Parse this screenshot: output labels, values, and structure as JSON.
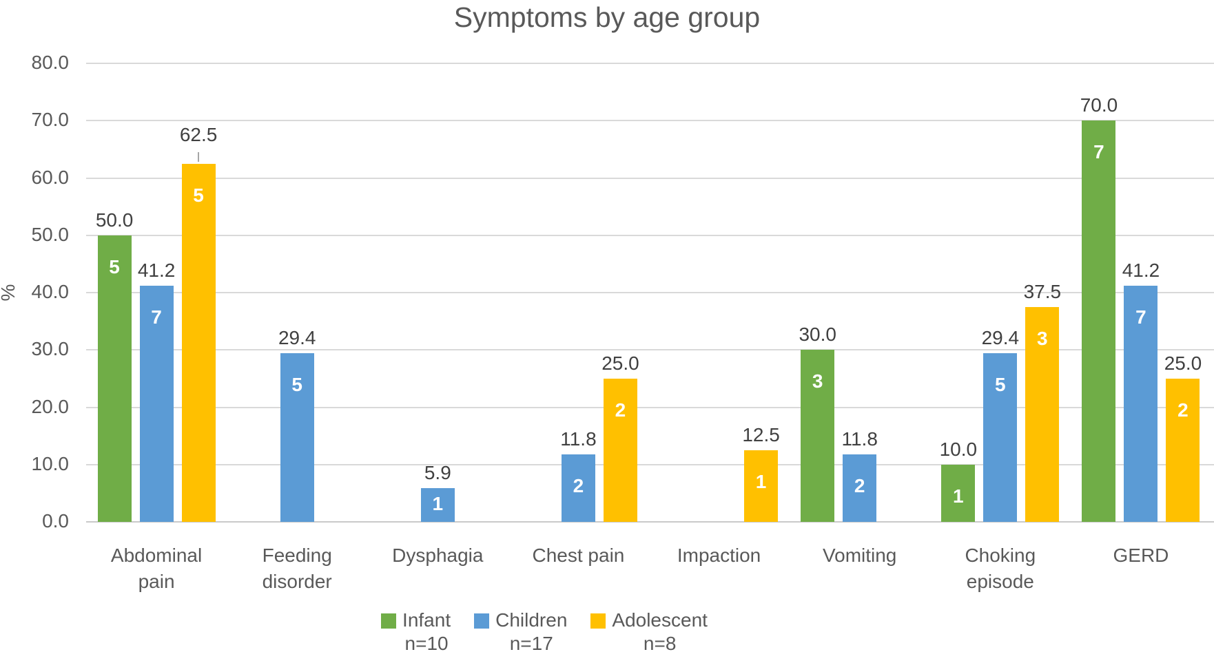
{
  "chart_data": {
    "type": "bar",
    "title": "Symptoms by age group",
    "ylabel": "%",
    "ylim": [
      0,
      80
    ],
    "ytick_step": 10,
    "ytick_labels": [
      "0.0",
      "10.0",
      "20.0",
      "30.0",
      "40.0",
      "50.0",
      "60.0",
      "70.0",
      "80.0"
    ],
    "grid": true,
    "legend_position": "bottom",
    "categories": [
      {
        "lines": [
          "Abdominal",
          "pain"
        ]
      },
      {
        "lines": [
          "Feeding",
          "disorder"
        ]
      },
      {
        "lines": [
          "Dysphagia"
        ]
      },
      {
        "lines": [
          "Chest pain"
        ]
      },
      {
        "lines": [
          "Impaction"
        ]
      },
      {
        "lines": [
          "Vomiting"
        ]
      },
      {
        "lines": [
          "Choking",
          "episode"
        ]
      },
      {
        "lines": [
          "GERD"
        ]
      }
    ],
    "series": [
      {
        "name": "Infant",
        "n_label": "n=10",
        "color": "#70AD47",
        "values": [
          50.0,
          null,
          null,
          null,
          null,
          30.0,
          10.0,
          70.0
        ],
        "counts": [
          5,
          null,
          null,
          null,
          null,
          3,
          1,
          7
        ]
      },
      {
        "name": "Children",
        "n_label": "n=17",
        "color": "#5B9BD5",
        "values": [
          41.2,
          29.4,
          5.9,
          11.8,
          null,
          11.8,
          29.4,
          41.2
        ],
        "counts": [
          7,
          5,
          1,
          2,
          null,
          2,
          5,
          7
        ]
      },
      {
        "name": "Adolescent",
        "n_label": "n=8",
        "color": "#FFC000",
        "values": [
          62.5,
          null,
          null,
          25.0,
          12.5,
          null,
          37.5,
          25.0
        ],
        "counts": [
          5,
          null,
          null,
          2,
          1,
          null,
          3,
          2
        ]
      }
    ],
    "value_label_decimals": 1,
    "leader_line_label": {
      "series_index": 2,
      "category_index": 0
    },
    "colors": {
      "text": "#595959",
      "value_label_text": "#404040",
      "count_label_text": "#FFFFFF",
      "gridline": "#D9D9D9",
      "axis_line": "#C9C9C9",
      "leader_line": "#A6A6A6",
      "background": "#FFFFFF"
    }
  }
}
